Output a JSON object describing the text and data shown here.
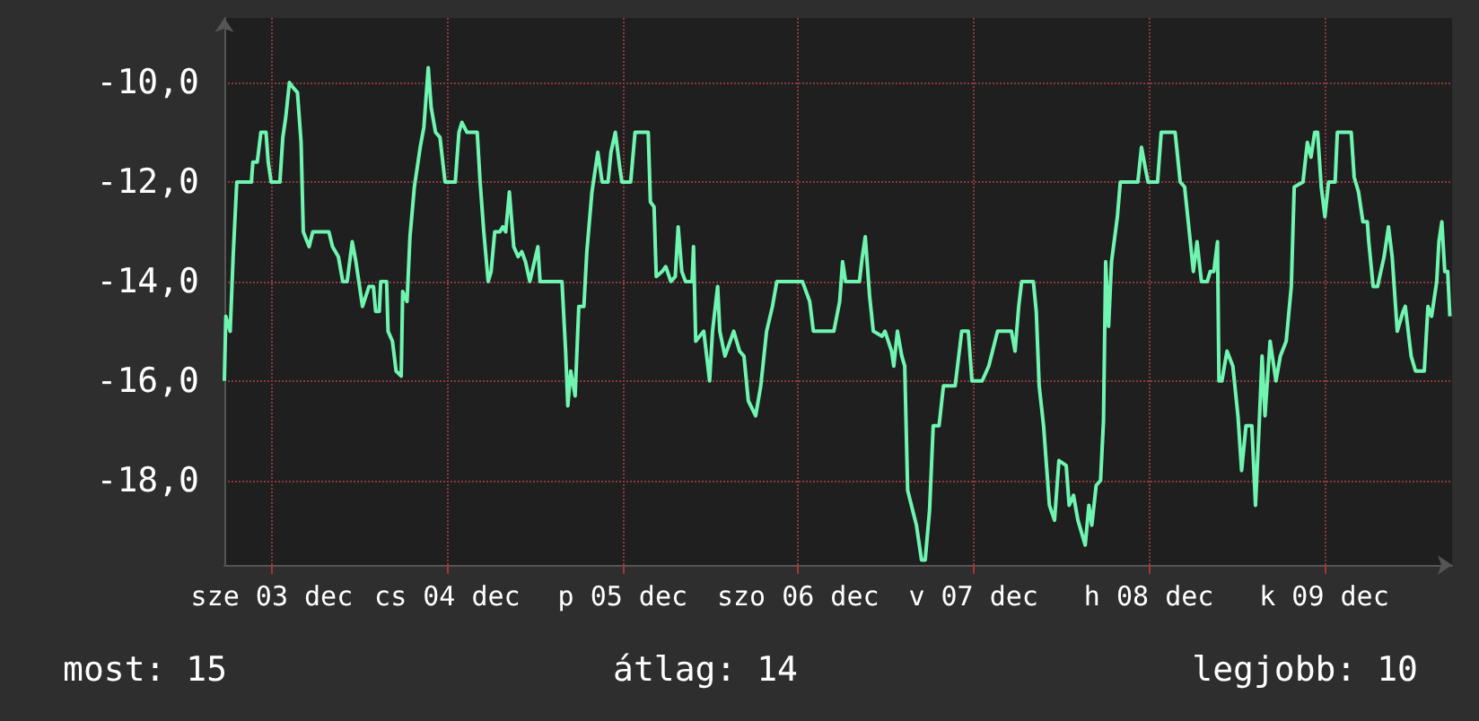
{
  "chart_data": {
    "type": "line",
    "annotations": [
      "most: 15",
      "átlag: 14",
      "legjobb: 10"
    ],
    "xlim": [
      "--12-03T05:30",
      "--12-10T05:30"
    ],
    "xticks": [
      {
        "value": "--12-03T12:00",
        "label": "sze 03 dec"
      },
      {
        "value": "--12-04T12:00",
        "label": "cs 04 dec"
      },
      {
        "value": "--12-05T12:00",
        "label": "p 05 dec"
      },
      {
        "value": "--12-06T12:00",
        "label": "szo 06 dec"
      },
      {
        "value": "--12-07T12:00",
        "label": "v 07 dec"
      },
      {
        "value": "--12-08T12:00",
        "label": "h 08 dec"
      },
      {
        "value": "--12-09T12:00",
        "label": "k 09 dec"
      }
    ],
    "ylim": [
      -19.7,
      -8.7
    ],
    "yticks": [
      {
        "value": -18,
        "label": "-18,0"
      },
      {
        "value": -16,
        "label": "-16,0"
      },
      {
        "value": -14,
        "label": "-14,0"
      },
      {
        "value": -12,
        "label": "-12,0"
      },
      {
        "value": -10,
        "label": "-10,0"
      }
    ],
    "grid": true,
    "series": [
      {
        "color": "#6ff5b0",
        "x": [
          "--12-03T05:30",
          "--12-03T05:42",
          "--12-03T06:18",
          "--12-03T06:42",
          "--12-03T07:12",
          "--12-03T09:12",
          "--12-03T09:24",
          "--12-03T10:00",
          "--12-03T10:30",
          "--12-03T11:12",
          "--12-03T11:30",
          "--12-03T11:54",
          "--12-03T13:06",
          "--12-03T13:30",
          "--12-03T13:54",
          "--12-03T14:24",
          "--12-03T14:54",
          "--12-03T15:30",
          "--12-03T16:00",
          "--12-03T16:18",
          "--12-03T17:06",
          "--12-03T17:36",
          "--12-03T19:48",
          "--12-03T20:18",
          "--12-03T21:06",
          "--12-03T21:42",
          "--12-03T22:18",
          "--12-03T23:00",
          "--12-03T23:30",
          "--12-04T00:24",
          "--12-04T01:18",
          "--12-04T01:54",
          "--12-04T02:12",
          "--12-04T02:42",
          "--12-04T02:54",
          "--12-04T03:42",
          "--12-04T03:54",
          "--12-04T04:30",
          "--12-04T05:00",
          "--12-04T05:42",
          "--12-04T05:54",
          "--12-04T06:30",
          "--12-04T06:54",
          "--12-04T07:30",
          "--12-04T08:18",
          "--12-04T08:48",
          "--12-04T09:24",
          "--12-04T09:48",
          "--12-04T10:24",
          "--12-04T11:00",
          "--12-04T11:42",
          "--12-04T13:06",
          "--12-04T13:36",
          "--12-04T14:00",
          "--12-04T14:42",
          "--12-04T16:06",
          "--12-04T16:30",
          "--12-04T17:00",
          "--12-04T17:36",
          "--12-04T18:00",
          "--12-04T18:30",
          "--12-04T19:12",
          "--12-04T19:36",
          "--12-04T20:00",
          "--12-04T20:30",
          "--12-04T21:06",
          "--12-04T21:42",
          "--12-04T22:12",
          "--12-04T22:42",
          "--12-04T23:18",
          "--12-05T00:24",
          "--12-05T00:42",
          "--12-05T03:42",
          "--12-05T04:12",
          "--12-05T04:30",
          "--12-05T04:54",
          "--12-05T05:30",
          "--12-05T06:00",
          "--12-05T06:42",
          "--12-05T07:06",
          "--12-05T07:48",
          "--12-05T08:36",
          "--12-05T09:12",
          "--12-05T10:00",
          "--12-05T10:24",
          "--12-05T11:00",
          "--12-05T11:36",
          "--12-05T11:54",
          "--12-05T13:06",
          "--12-05T13:42",
          "--12-05T15:30",
          "--12-05T15:48",
          "--12-05T16:18",
          "--12-05T16:36",
          "--12-05T17:24",
          "--12-05T17:54",
          "--12-05T18:36",
          "--12-05T19:12",
          "--12-05T19:36",
          "--12-05T20:06",
          "--12-05T20:36",
          "--12-05T21:30",
          "--12-05T21:42",
          "--12-05T22:00",
          "--12-05T23:06",
          "--12-05T23:54",
          "--12-06T00:18",
          "--12-06T01:00",
          "--12-06T01:18",
          "--12-06T02:00",
          "--12-06T03:12",
          "--12-06T04:00",
          "--12-06T04:36",
          "--12-06T05:12",
          "--12-06T06:12",
          "--12-06T06:54",
          "--12-06T07:42",
          "--12-06T08:30",
          "--12-06T09:06",
          "--12-06T12:36",
          "--12-06T13:36",
          "--12-06T14:06",
          "--12-06T16:54",
          "--12-06T17:42",
          "--12-06T18:06",
          "--12-06T18:30",
          "--12-06T20:24",
          "--12-06T20:48",
          "--12-06T21:12",
          "--12-06T21:48",
          "--12-06T22:18",
          "--12-06T23:30",
          "--12-06T23:54",
          "--12-07T00:48",
          "--12-07T01:06",
          "--12-07T01:36",
          "--12-07T02:12",
          "--12-07T02:36",
          "--12-07T03:00",
          "--12-07T04:12",
          "--12-07T04:54",
          "--12-07T05:24",
          "--12-07T06:00",
          "--12-07T06:30",
          "--12-07T07:18",
          "--12-07T07:54",
          "--12-07T09:30",
          "--12-07T10:24",
          "--12-07T11:18",
          "--12-07T11:48",
          "--12-07T13:12",
          "--12-07T14:06",
          "--12-07T15:18",
          "--12-07T17:12",
          "--12-07T17:42",
          "--12-07T18:12",
          "--12-07T18:36",
          "--12-07T19:48",
          "--12-07T20:12",
          "--12-07T20:36",
          "--12-07T21:00",
          "--12-07T21:36",
          "--12-07T22:24",
          "--12-07T23:06",
          "--12-07T23:42",
          "--12-08T00:42",
          "--12-08T01:06",
          "--12-08T01:42",
          "--12-08T02:18",
          "--12-08T03:18",
          "--12-08T03:48",
          "--12-08T04:12",
          "--12-08T04:48",
          "--12-08T05:24",
          "--12-08T05:48",
          "--12-08T06:06",
          "--12-08T06:30",
          "--12-08T06:54",
          "--12-08T07:42",
          "--12-08T08:06",
          "--12-08T10:30",
          "--12-08T11:00",
          "--12-08T11:30",
          "--12-08T11:54",
          "--12-08T13:12",
          "--12-08T13:42",
          "--12-08T15:36",
          "--12-08T16:18",
          "--12-08T16:54",
          "--12-08T17:24",
          "--12-08T18:06",
          "--12-08T18:36",
          "--12-08T19:12",
          "--12-08T20:00",
          "--12-08T20:24",
          "--12-08T20:54",
          "--12-08T21:24",
          "--12-08T21:36",
          "--12-08T22:00",
          "--12-08T22:42",
          "--12-08T23:30",
          "--12-09T00:12",
          "--12-09T00:42",
          "--12-09T01:18",
          "--12-09T02:06",
          "--12-09T02:36",
          "--12-09T03:06",
          "--12-09T03:30",
          "--12-09T03:54",
          "--12-09T04:36",
          "--12-09T05:24",
          "--12-09T06:00",
          "--12-09T06:48",
          "--12-09T07:30",
          "--12-09T07:54",
          "--12-09T09:06",
          "--12-09T09:42",
          "--12-09T10:12",
          "--12-09T10:42",
          "--12-09T11:06",
          "--12-09T11:36",
          "--12-09T12:06",
          "--12-09T12:36",
          "--12-09T13:30",
          "--12-09T13:48",
          "--12-09T15:42",
          "--12-09T16:06",
          "--12-09T16:42",
          "--12-09T17:18",
          "--12-09T17:54",
          "--12-09T18:06",
          "--12-09T18:42",
          "--12-09T19:18",
          "--12-09T20:12",
          "--12-09T20:48",
          "--12-09T21:18",
          "--12-09T22:00",
          "--12-09T22:48",
          "--12-09T23:06",
          "--12-09T23:54",
          "--12-10T00:30",
          "--12-10T01:42",
          "--12-10T02:12",
          "--12-10T02:42",
          "--12-10T03:24",
          "--12-10T03:42",
          "--12-10T04:06",
          "--12-10T04:30",
          "--12-10T04:54",
          "--12-10T05:12"
        ],
        "values": [
          -16.0,
          -14.7,
          -15.0,
          -13.5,
          -12.0,
          -12.0,
          -11.6,
          -11.6,
          -11.0,
          -11.0,
          -11.6,
          -12.0,
          -12.0,
          -11.1,
          -10.7,
          -10.0,
          -10.1,
          -10.2,
          -11.2,
          -13.0,
          -13.3,
          -13.0,
          -13.0,
          -13.3,
          -13.5,
          -14.0,
          -14.0,
          -13.2,
          -13.6,
          -14.5,
          -14.1,
          -14.1,
          -14.6,
          -14.6,
          -14.0,
          -14.0,
          -15.0,
          -15.2,
          -15.8,
          -15.9,
          -14.2,
          -14.4,
          -13.1,
          -12.1,
          -11.3,
          -10.9,
          -9.7,
          -10.5,
          -11.0,
          -11.1,
          -12.0,
          -12.0,
          -11.0,
          -10.8,
          -11.0,
          -11.0,
          -12.0,
          -13.0,
          -14.0,
          -13.8,
          -13.0,
          -13.0,
          -12.9,
          -13.0,
          -12.2,
          -13.3,
          -13.5,
          -13.4,
          -13.6,
          -14.0,
          -13.3,
          -14.0,
          -14.0,
          -15.4,
          -16.5,
          -15.8,
          -16.3,
          -14.5,
          -14.5,
          -13.4,
          -12.2,
          -11.4,
          -12.0,
          -12.0,
          -11.4,
          -11.0,
          -11.7,
          -12.0,
          -12.0,
          -11.0,
          -11.0,
          -12.4,
          -12.5,
          -13.9,
          -13.8,
          -13.7,
          -14.0,
          -13.9,
          -12.9,
          -13.8,
          -14.0,
          -14.0,
          -13.3,
          -15.2,
          -15.0,
          -16.0,
          -15.0,
          -14.1,
          -15.0,
          -15.5,
          -15.0,
          -15.4,
          -15.5,
          -16.4,
          -16.7,
          -16.1,
          -15.0,
          -14.5,
          -14.0,
          -14.0,
          -14.4,
          -15.0,
          -15.0,
          -14.4,
          -13.6,
          -14.0,
          -14.0,
          -13.5,
          -13.1,
          -14.3,
          -15.0,
          -15.1,
          -15.0,
          -15.4,
          -15.7,
          -15.0,
          -15.5,
          -15.7,
          -18.2,
          -18.9,
          -19.6,
          -19.6,
          -18.6,
          -16.9,
          -16.9,
          -16.1,
          -16.1,
          -15.0,
          -15.0,
          -16.0,
          -16.0,
          -15.7,
          -15.0,
          -15.0,
          -15.4,
          -14.5,
          -14.0,
          -14.0,
          -14.0,
          -14.6,
          -16.1,
          -16.9,
          -18.5,
          -18.8,
          -17.6,
          -17.7,
          -18.5,
          -18.3,
          -18.8,
          -19.3,
          -18.5,
          -18.9,
          -18.1,
          -18.0,
          -16.8,
          -13.6,
          -14.9,
          -13.6,
          -12.7,
          -12.0,
          -12.0,
          -11.3,
          -11.7,
          -12.0,
          -12.0,
          -11.0,
          -11.0,
          -12.0,
          -12.1,
          -12.8,
          -13.8,
          -13.2,
          -14.0,
          -14.0,
          -13.8,
          -13.8,
          -13.2,
          -16.0,
          -16.0,
          -15.4,
          -15.7,
          -16.7,
          -17.8,
          -16.9,
          -16.9,
          -18.5,
          -16.9,
          -15.5,
          -16.7,
          -15.2,
          -16.0,
          -15.5,
          -15.2,
          -14.1,
          -12.1,
          -12.0,
          -11.2,
          -11.5,
          -11.0,
          -11.0,
          -12.1,
          -12.7,
          -12.0,
          -12.0,
          -11.0,
          -11.0,
          -11.9,
          -12.2,
          -12.8,
          -12.8,
          -13.2,
          -14.1,
          -14.1,
          -13.5,
          -12.9,
          -13.5,
          -15.0,
          -14.6,
          -14.5,
          -15.5,
          -15.8,
          -15.8,
          -14.5,
          -14.7,
          -14.0,
          -13.2,
          -12.8,
          -13.8,
          -13.8,
          -14.7
        ]
      }
    ]
  }
}
